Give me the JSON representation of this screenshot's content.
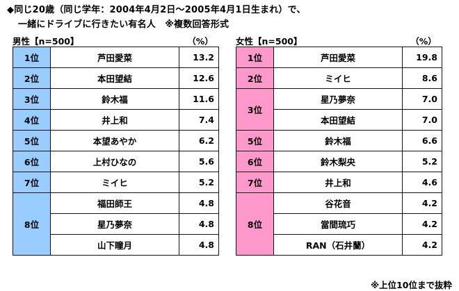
{
  "title_line1": "◆同じ20歳（同じ学年：2004年4月2日～2005年4月1日生まれ）で、",
  "title_line2": "一緒にドライブに行きたい有名人　※複数回答形式",
  "male": {
    "label": "男性【n=500】",
    "pct_header": "（%）",
    "rows": [
      {
        "rank": "1位",
        "name": "芦田愛菜",
        "value": "13.2"
      },
      {
        "rank": "2位",
        "name": "本田望結",
        "value": "12.6"
      },
      {
        "rank": "3位",
        "name": "鈴木福",
        "value": "11.6"
      },
      {
        "rank": "4位",
        "name": "井上和",
        "value": "7.4"
      },
      {
        "rank": "5位",
        "name": "本望あやか",
        "value": "6.2"
      },
      {
        "rank": "6位",
        "name": "上村ひなの",
        "value": "5.6"
      },
      {
        "rank": "7位",
        "name": "ミイヒ",
        "value": "5.2"
      },
      {
        "rank": "8位",
        "name": "福田師王",
        "value": "4.8"
      },
      {
        "rank": "",
        "name": "星乃夢奈",
        "value": "4.8"
      },
      {
        "rank": "",
        "name": "山下瞳月",
        "value": "4.8"
      }
    ]
  },
  "female": {
    "label": "女性【n=500】",
    "pct_header": "（%）",
    "rows": [
      {
        "rank": "1位",
        "name": "芦田愛菜",
        "value": "19.8"
      },
      {
        "rank": "2位",
        "name": "ミイヒ",
        "value": "8.6"
      },
      {
        "rank": "3位",
        "name": "星乃夢奈",
        "value": "7.0"
      },
      {
        "rank": "",
        "name": "本田望結",
        "value": "7.0"
      },
      {
        "rank": "5位",
        "name": "鈴木福",
        "value": "6.6"
      },
      {
        "rank": "6位",
        "name": "鈴木梨央",
        "value": "5.2"
      },
      {
        "rank": "7位",
        "name": "井上和",
        "value": "4.6"
      },
      {
        "rank": "8位",
        "name": "谷花音",
        "value": "4.2"
      },
      {
        "rank": "",
        "name": "當間琉巧",
        "value": "4.2"
      },
      {
        "rank": "",
        "name": "RAN（石井蘭）",
        "value": "4.2"
      }
    ]
  },
  "footer": "※上位10位まで抜粋",
  "colors": {
    "male_rank_bg": "#99ccff",
    "female_rank_bg": "#ff99cc"
  }
}
